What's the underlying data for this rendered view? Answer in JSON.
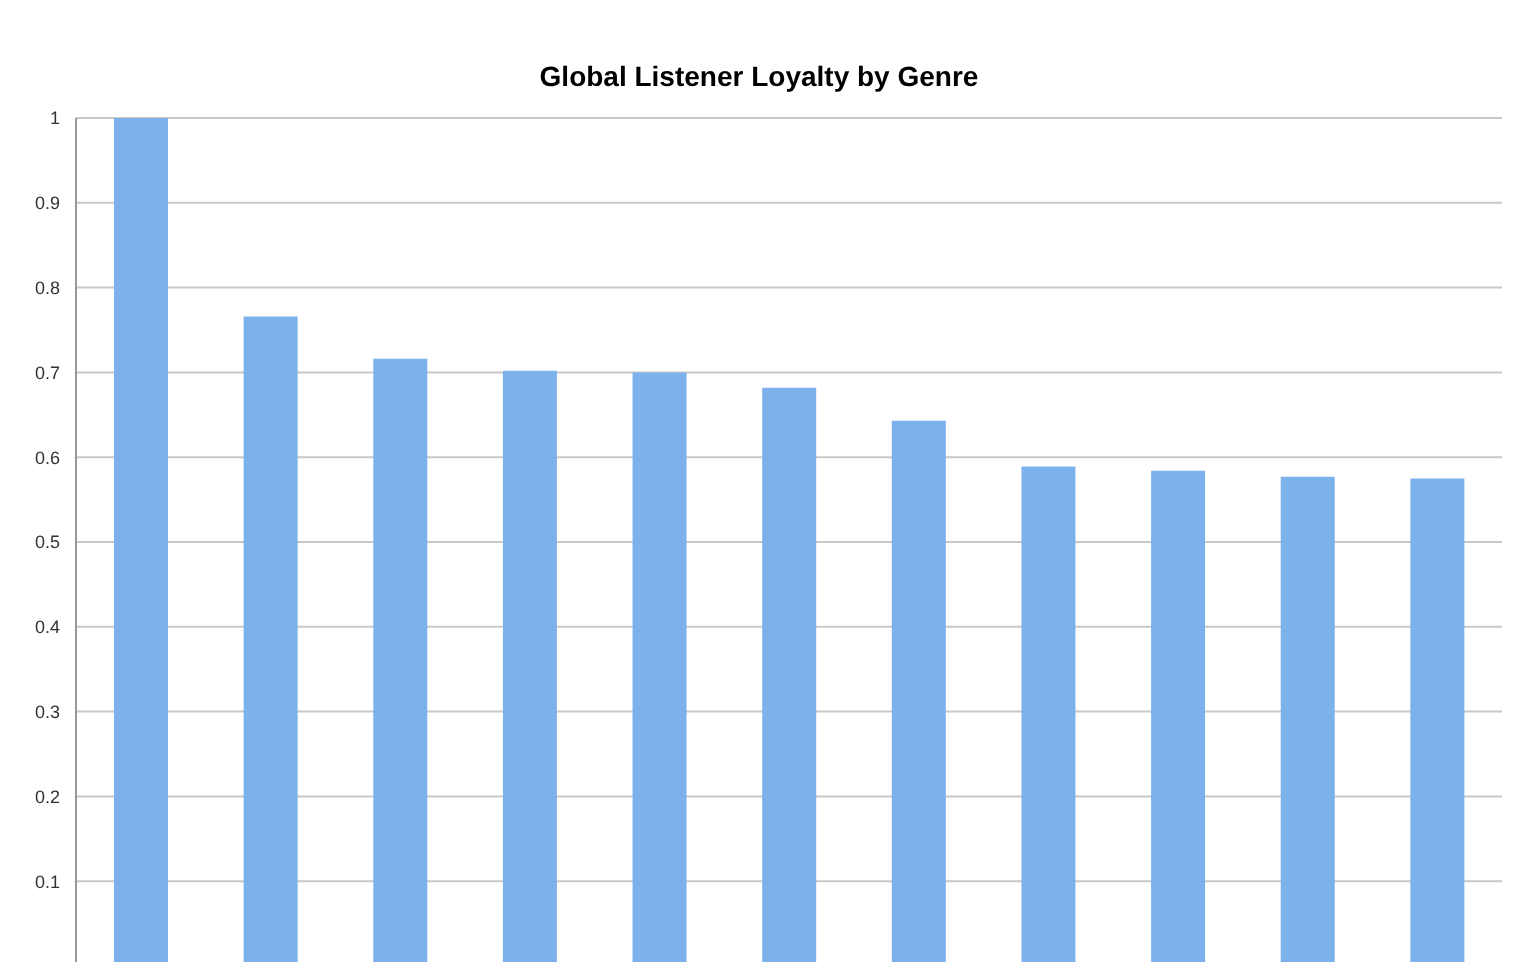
{
  "chart_data": {
    "type": "bar",
    "title": "Global Listener Loyalty by Genre",
    "categories": [
      null,
      null,
      null,
      null,
      null,
      null,
      null,
      null,
      null,
      null,
      null
    ],
    "values": [
      1.0,
      0.766,
      0.716,
      0.702,
      0.7,
      0.682,
      0.643,
      0.589,
      0.584,
      0.577,
      0.575
    ],
    "color": "#7db1ec",
    "ylim": [
      0,
      1
    ],
    "yticks": [
      0.1,
      0.2,
      0.3,
      0.4,
      0.5,
      0.6,
      0.7,
      0.8,
      0.9,
      1
    ],
    "grid": "y",
    "tick_labels": "y"
  }
}
